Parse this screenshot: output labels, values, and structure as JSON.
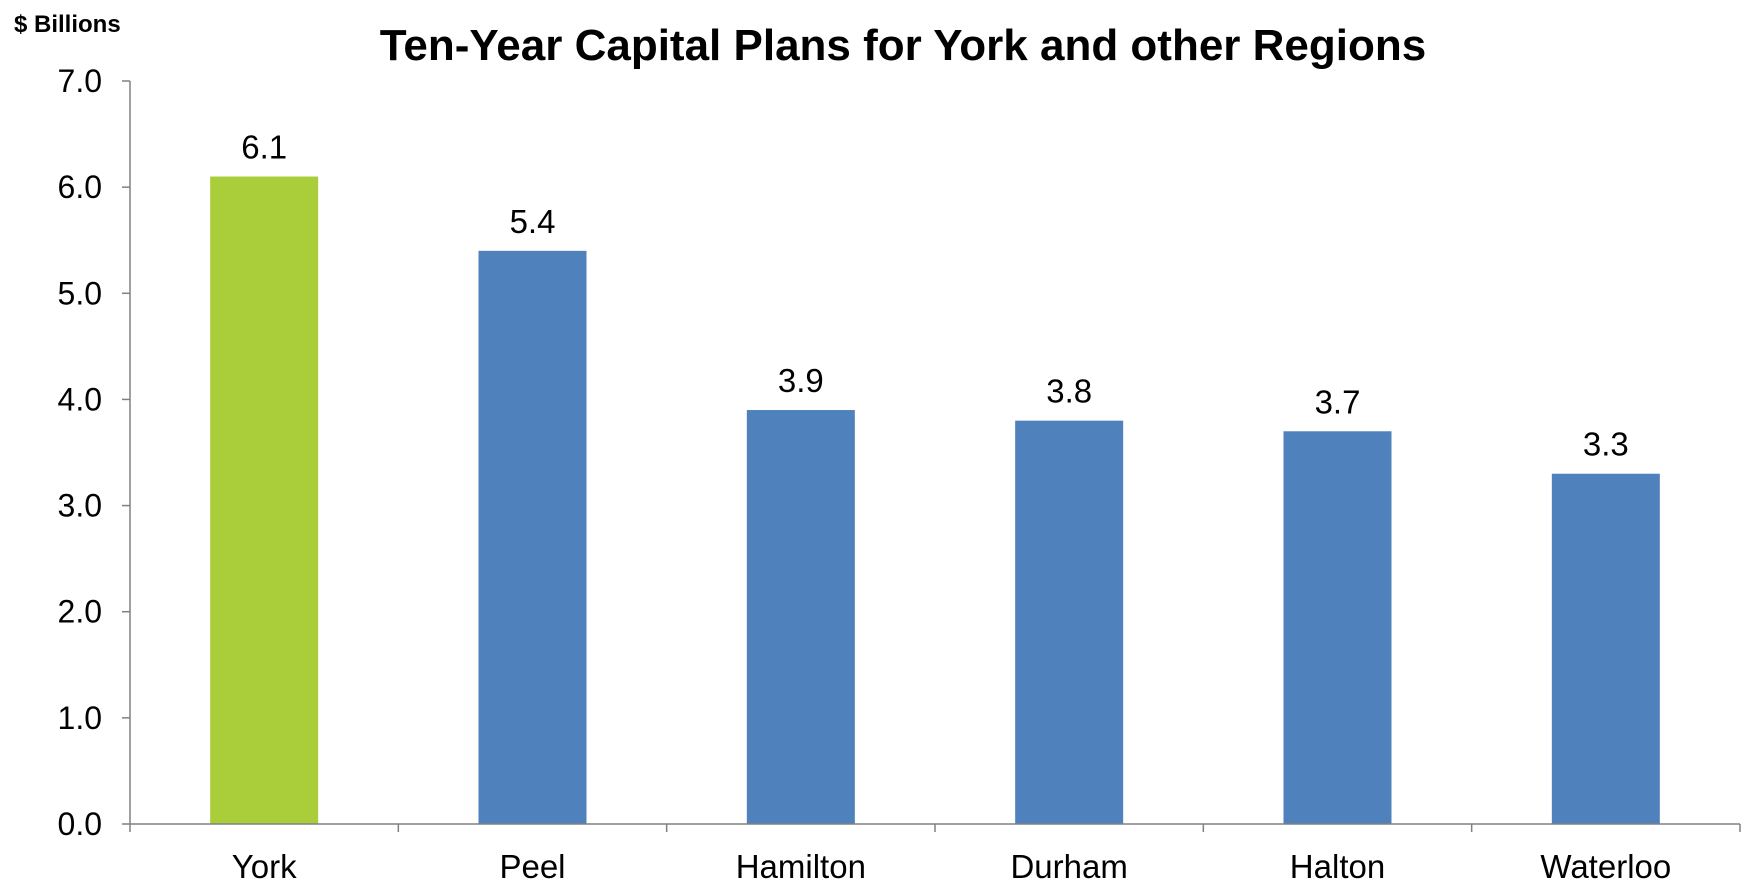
{
  "chart_data": {
    "type": "bar",
    "title": "Ten-Year Capital Plans for York and other Regions",
    "ylabel": "$ Billions",
    "xlabel": "",
    "categories": [
      "York",
      "Peel",
      "Hamilton",
      "Durham",
      "Halton",
      "Waterloo"
    ],
    "values": [
      6.1,
      5.4,
      3.9,
      3.8,
      3.7,
      3.3
    ],
    "data_labels": [
      "6.1",
      "5.4",
      "3.9",
      "3.8",
      "3.7",
      "3.3"
    ],
    "ylim": [
      0,
      7
    ],
    "yticks": [
      "0.0",
      "1.0",
      "2.0",
      "3.0",
      "4.0",
      "5.0",
      "6.0",
      "7.0"
    ],
    "grid": false,
    "legend": "none",
    "colors": {
      "highlight": "#A9CE3A",
      "default": "#4F81BD",
      "axis": "#808080"
    },
    "highlight_category": "York"
  }
}
